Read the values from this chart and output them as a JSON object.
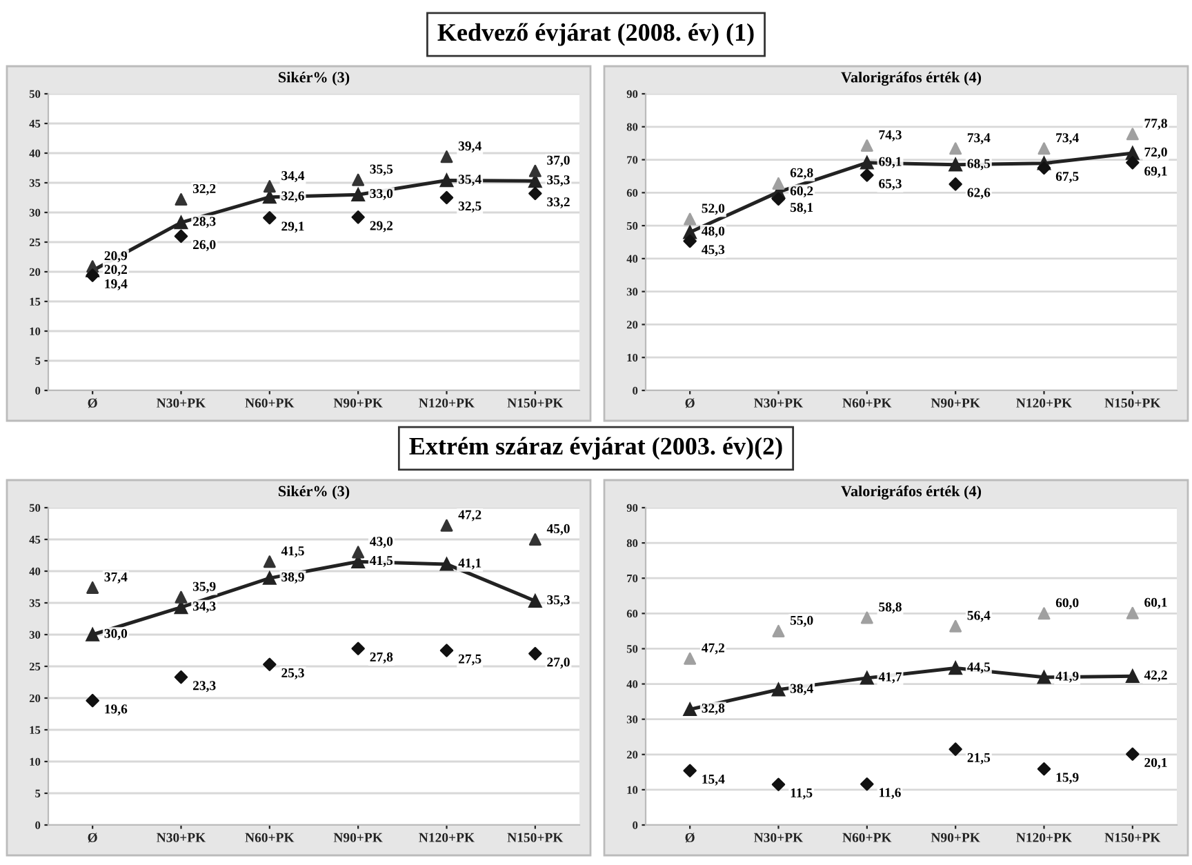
{
  "chart_data": [
    {
      "type": "line",
      "title": "Kedvező évjárat (2008. év) (1)",
      "subtitle": "Sikér% (3)",
      "categories": [
        "Ø",
        "N30+PK",
        "N60+PK",
        "N90+PK",
        "N120+PK",
        "N150+PK"
      ],
      "ylim": [
        0,
        50
      ],
      "yticks": [
        0,
        5,
        10,
        15,
        20,
        25,
        30,
        35,
        40,
        45,
        50
      ],
      "grid": "y",
      "data_labels": true,
      "series": [
        {
          "type": "scatter",
          "marker": "triangle",
          "color": "#333333",
          "values": [
            20.9,
            32.2,
            34.4,
            35.5,
            39.4,
            37.0
          ],
          "value_labels": [
            "20,9",
            "32,2",
            "34,4",
            "35,5",
            "39,4",
            "37,0"
          ]
        },
        {
          "type": "line",
          "marker": "triangle",
          "color": "#222222",
          "values": [
            20.2,
            28.3,
            32.6,
            33.0,
            35.4,
            35.3
          ],
          "value_labels": [
            "20,2",
            "28,3",
            "32,6",
            "33,0",
            "35,4",
            "35,3"
          ]
        },
        {
          "type": "scatter",
          "marker": "diamond",
          "color": "#111111",
          "values": [
            19.4,
            26.0,
            29.1,
            29.2,
            32.5,
            33.2
          ],
          "value_labels": [
            "19,4",
            "26,0",
            "29,1",
            "29,2",
            "32,5",
            "33,2"
          ]
        }
      ]
    },
    {
      "type": "line",
      "subtitle": "Valorigráfos érték (4)",
      "categories": [
        "Ø",
        "N30+PK",
        "N60+PK",
        "N90+PK",
        "N120+PK",
        "N150+PK"
      ],
      "ylim": [
        0,
        90
      ],
      "yticks": [
        0,
        10,
        20,
        30,
        40,
        50,
        60,
        70,
        80,
        90
      ],
      "grid": "y",
      "data_labels": true,
      "series": [
        {
          "type": "scatter",
          "marker": "triangle",
          "color": "#a0a0a0",
          "values": [
            52.0,
            62.8,
            74.3,
            73.4,
            73.4,
            77.8
          ],
          "value_labels": [
            "52,0",
            "62,8",
            "74,3",
            "73,4",
            "73,4",
            "77,8"
          ]
        },
        {
          "type": "line",
          "marker": "triangle",
          "color": "#222222",
          "values": [
            48.0,
            60.2,
            69.1,
            68.5,
            68.9,
            72.0
          ],
          "value_labels": [
            "48,0",
            "60,2",
            "69,1",
            "68,5",
            null,
            "72,0"
          ]
        },
        {
          "type": "scatter",
          "marker": "diamond",
          "color": "#111111",
          "values": [
            45.3,
            58.1,
            65.3,
            62.6,
            67.5,
            69.1
          ],
          "value_labels": [
            "45,3",
            "58,1",
            "65,3",
            "62,6",
            "67,5",
            "69,1"
          ]
        }
      ]
    },
    {
      "type": "line",
      "title": "Extrém száraz évjárat (2003. év)(2)",
      "subtitle": "Sikér% (3)",
      "categories": [
        "Ø",
        "N30+PK",
        "N60+PK",
        "N90+PK",
        "N120+PK",
        "N150+PK"
      ],
      "ylim": [
        0,
        50
      ],
      "yticks": [
        0,
        5,
        10,
        15,
        20,
        25,
        30,
        35,
        40,
        45,
        50
      ],
      "grid": "y",
      "data_labels": true,
      "series": [
        {
          "type": "scatter",
          "marker": "triangle",
          "color": "#333333",
          "values": [
            37.4,
            35.9,
            41.5,
            43.0,
            47.2,
            45.0
          ],
          "value_labels": [
            "37,4",
            "35,9",
            "41,5",
            "43,0",
            "47,2",
            "45,0"
          ]
        },
        {
          "type": "line",
          "marker": "triangle",
          "color": "#222222",
          "values": [
            30.0,
            34.3,
            38.9,
            41.5,
            41.1,
            35.3
          ],
          "value_labels": [
            "30,0",
            "34,3",
            "38,9",
            "41,5",
            "41,1",
            "35,3"
          ]
        },
        {
          "type": "scatter",
          "marker": "diamond",
          "color": "#111111",
          "values": [
            19.6,
            23.3,
            25.3,
            27.8,
            27.5,
            27.0
          ],
          "value_labels": [
            "19,6",
            "23,3",
            "25,3",
            "27,8",
            "27,5",
            "27,0"
          ]
        }
      ]
    },
    {
      "type": "line",
      "subtitle": "Valorigráfos érték (4)",
      "categories": [
        "Ø",
        "N30+PK",
        "N60+PK",
        "N90+PK",
        "N120+PK",
        "N150+PK"
      ],
      "ylim": [
        0,
        90
      ],
      "yticks": [
        0,
        10,
        20,
        30,
        40,
        50,
        60,
        70,
        80,
        90
      ],
      "grid": "y",
      "data_labels": true,
      "series": [
        {
          "type": "scatter",
          "marker": "triangle",
          "color": "#a0a0a0",
          "values": [
            47.2,
            55.0,
            58.8,
            56.4,
            60.0,
            60.1
          ],
          "value_labels": [
            "47,2",
            "55,0",
            "58,8",
            "56,4",
            "60,0",
            "60,1"
          ]
        },
        {
          "type": "line",
          "marker": "triangle",
          "color": "#222222",
          "values": [
            32.8,
            38.4,
            41.7,
            44.5,
            41.9,
            42.2
          ],
          "value_labels": [
            "32,8",
            "38,4",
            "41,7",
            "44,5",
            "41,9",
            "42,2"
          ]
        },
        {
          "type": "scatter",
          "marker": "diamond",
          "color": "#111111",
          "values": [
            15.4,
            11.5,
            11.6,
            21.5,
            15.9,
            20.1
          ],
          "value_labels": [
            "15,4",
            "11,5",
            "11,6",
            "21,5",
            "15,9",
            "20,1"
          ]
        }
      ]
    }
  ]
}
